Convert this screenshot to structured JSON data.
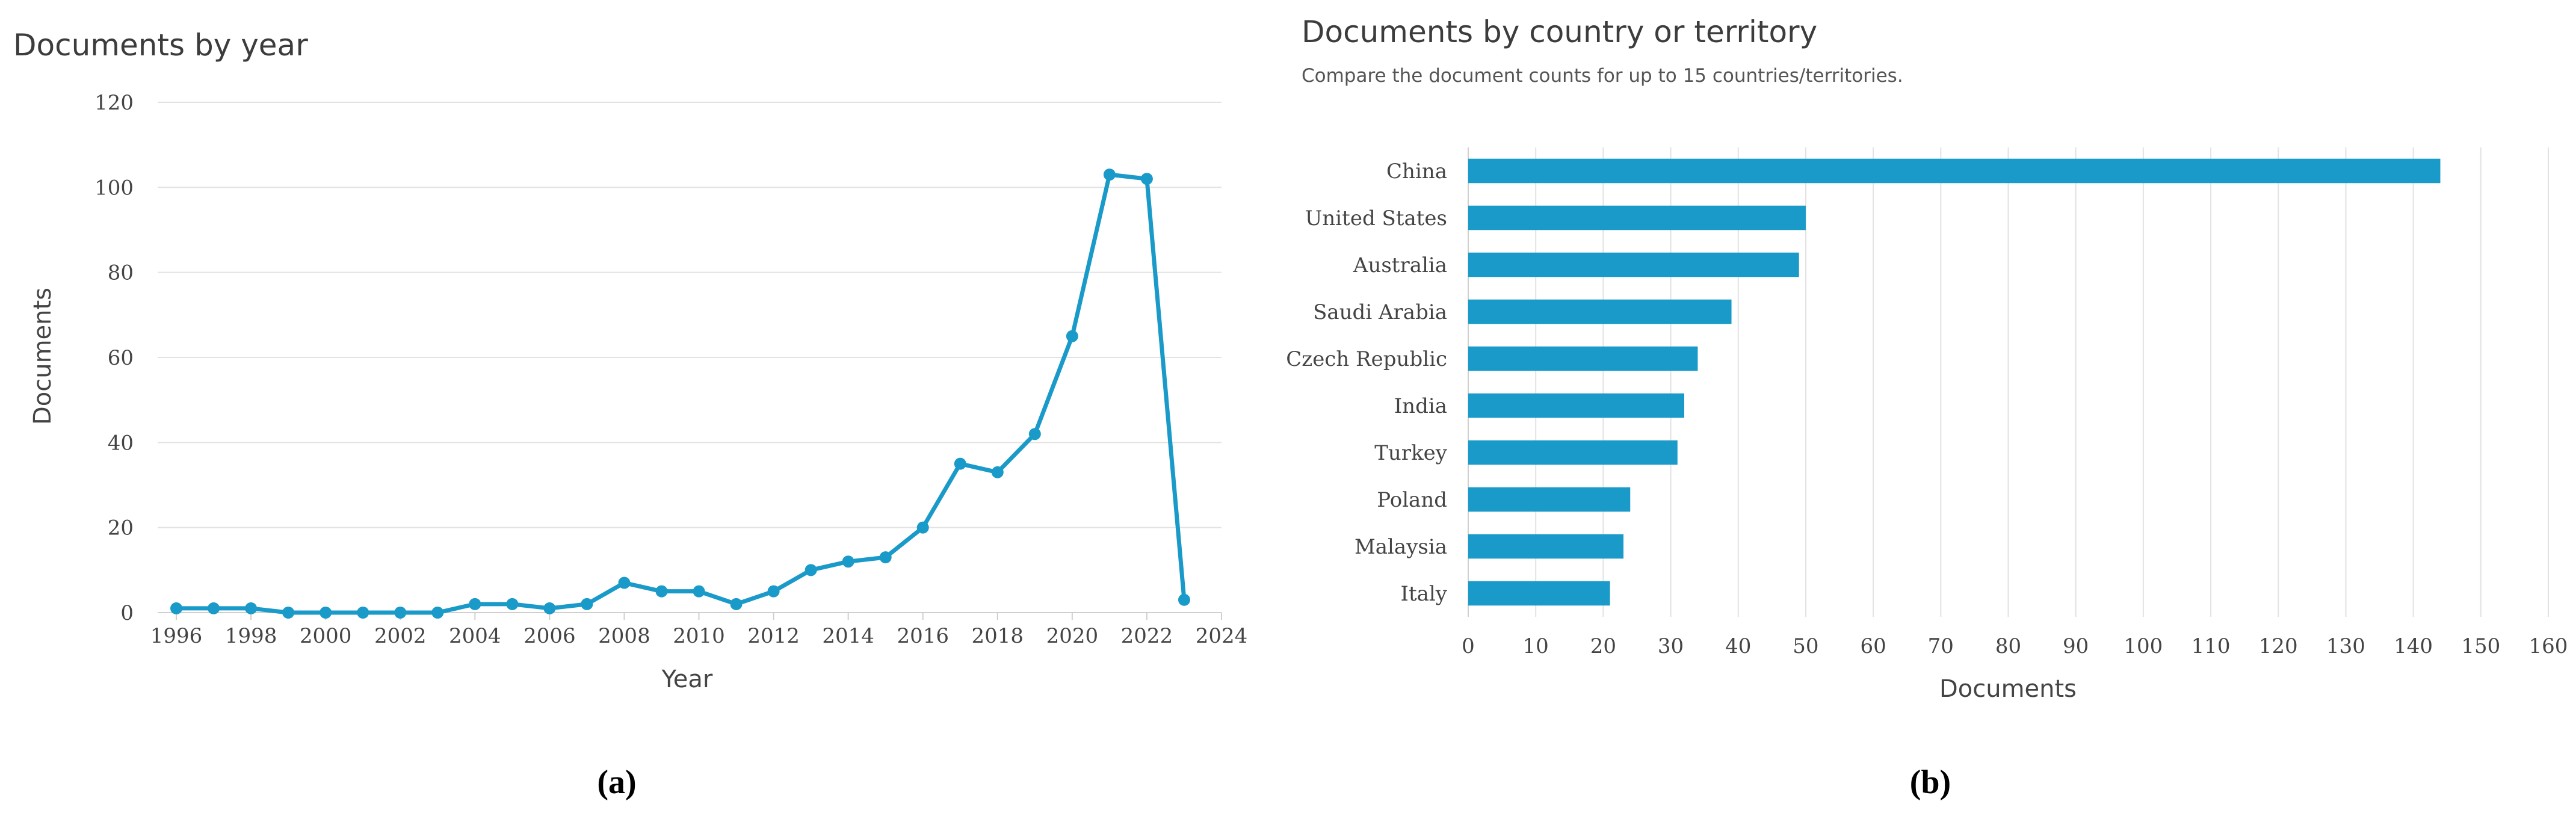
{
  "colors": {
    "accent": "#1a9ac9",
    "grid": "#e2e2e2",
    "text": "#444444"
  },
  "chart_data": [
    {
      "type": "line",
      "title": "Documents by year",
      "xlabel": "Year",
      "ylabel": "Documents",
      "xlim": [
        1995.5,
        2024
      ],
      "ylim": [
        0,
        120
      ],
      "yticks": [
        0,
        20,
        40,
        60,
        80,
        100,
        120
      ],
      "xticks": [
        1996,
        1998,
        2000,
        2002,
        2004,
        2006,
        2008,
        2010,
        2012,
        2014,
        2016,
        2018,
        2020,
        2022,
        2024
      ],
      "x": [
        1996,
        1997,
        1998,
        1999,
        2000,
        2001,
        2002,
        2003,
        2004,
        2005,
        2006,
        2007,
        2008,
        2009,
        2010,
        2011,
        2012,
        2013,
        2014,
        2015,
        2016,
        2017,
        2018,
        2019,
        2020,
        2021,
        2022,
        2023
      ],
      "y": [
        1,
        1,
        1,
        0,
        0,
        0,
        0,
        0,
        2,
        2,
        1,
        2,
        7,
        5,
        5,
        2,
        5,
        10,
        12,
        13,
        20,
        35,
        33,
        42,
        65,
        103,
        102,
        3
      ],
      "grid": true,
      "panel_label": "(a)"
    },
    {
      "type": "bar",
      "orientation": "horizontal",
      "title": "Documents by country or territory",
      "subtitle": "Compare the document counts for up to 15 countries/territories.",
      "xlabel": "Documents",
      "ylabel": "",
      "xlim": [
        0,
        160
      ],
      "xticks": [
        0,
        10,
        20,
        30,
        40,
        50,
        60,
        70,
        80,
        90,
        100,
        110,
        120,
        130,
        140,
        150,
        160
      ],
      "categories": [
        "China",
        "United States",
        "Australia",
        "Saudi Arabia",
        "Czech Republic",
        "India",
        "Turkey",
        "Poland",
        "Malaysia",
        "Italy"
      ],
      "values": [
        144,
        50,
        49,
        39,
        34,
        32,
        31,
        24,
        23,
        21
      ],
      "grid": true,
      "panel_label": "(b)"
    }
  ]
}
